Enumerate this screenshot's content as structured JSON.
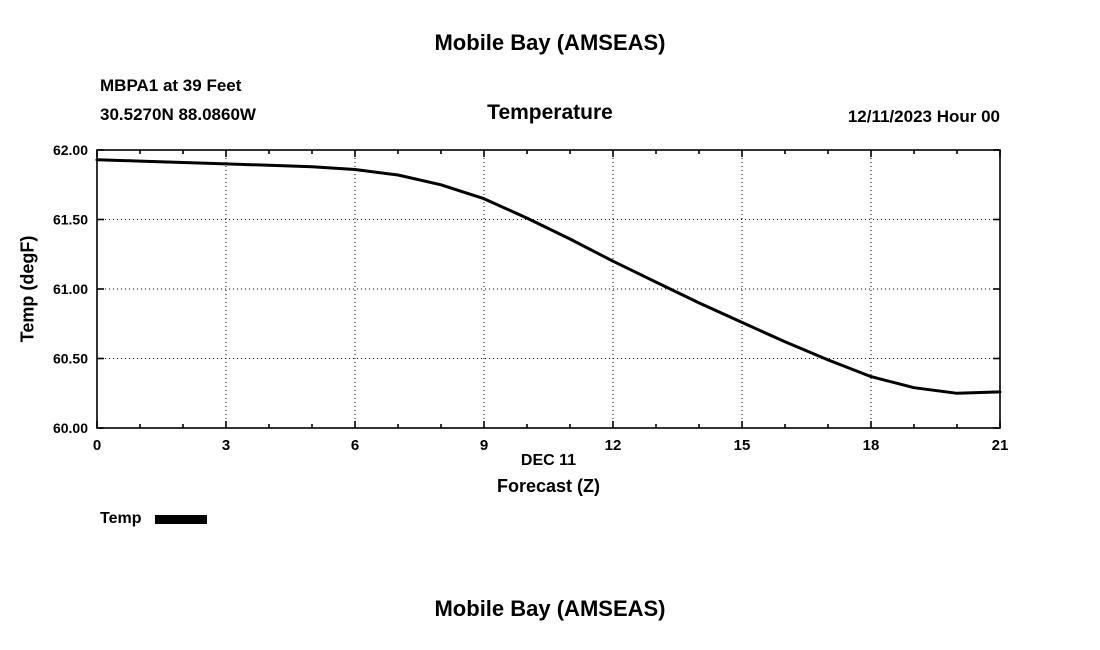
{
  "page": {
    "top_title": "Mobile Bay (AMSEAS)",
    "bottom_title": "Mobile Bay (AMSEAS)"
  },
  "header": {
    "station_line1": "MBPA1 at 39 Feet",
    "station_line2": "30.5270N  88.0860W",
    "subtitle": "Temperature",
    "datetime": "12/11/2023 Hour 00"
  },
  "chart_data": {
    "type": "line",
    "title": "Temperature",
    "xlabel_line1": "DEC 11",
    "xlabel_line2": "Forecast (Z)",
    "ylabel": "Temp (degF)",
    "xlim": [
      0,
      21
    ],
    "ylim": [
      60.0,
      62.0
    ],
    "x_ticks": [
      0,
      3,
      6,
      9,
      12,
      15,
      18,
      21
    ],
    "x_minor_tick_step": 1,
    "y_ticks": [
      60.0,
      60.5,
      61.0,
      61.5,
      62.0
    ],
    "y_tick_labels": [
      "60.00",
      "60.50",
      "61.00",
      "61.50",
      "62.00"
    ],
    "grid": "dotted",
    "legend": {
      "label": "Temp",
      "position": "bottom-left"
    },
    "series": [
      {
        "name": "Temp",
        "color": "#000000",
        "x": [
          0,
          1,
          2,
          3,
          4,
          5,
          6,
          7,
          8,
          9,
          10,
          11,
          12,
          13,
          14,
          15,
          16,
          17,
          18,
          19,
          20,
          21
        ],
        "y": [
          61.93,
          61.92,
          61.91,
          61.9,
          61.89,
          61.88,
          61.86,
          61.82,
          61.75,
          61.65,
          61.51,
          61.36,
          61.2,
          61.05,
          60.9,
          60.76,
          60.62,
          60.49,
          60.37,
          60.29,
          60.25,
          60.26
        ]
      }
    ]
  }
}
